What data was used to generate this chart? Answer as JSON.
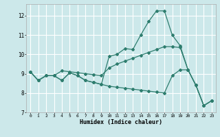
{
  "title": "",
  "xlabel": "Humidex (Indice chaleur)",
  "ylabel": "",
  "bg_color": "#cce8ea",
  "grid_color": "#ffffff",
  "line_color": "#2e7d6e",
  "xlim": [
    -0.5,
    23.5
  ],
  "ylim": [
    7,
    12.6
  ],
  "yticks": [
    7,
    8,
    9,
    10,
    11,
    12
  ],
  "xticks": [
    0,
    1,
    2,
    3,
    4,
    5,
    6,
    7,
    8,
    9,
    10,
    11,
    12,
    13,
    14,
    15,
    16,
    17,
    18,
    19,
    20,
    21,
    22,
    23
  ],
  "series": [
    {
      "x": [
        0,
        1,
        2,
        3,
        4,
        5,
        6,
        7,
        8,
        9,
        10,
        11,
        12,
        13,
        14,
        15,
        16,
        17,
        18,
        19,
        20,
        21,
        22,
        23
      ],
      "y": [
        9.1,
        8.65,
        8.9,
        8.9,
        8.65,
        9.05,
        8.9,
        8.65,
        8.55,
        8.45,
        9.9,
        10.0,
        10.3,
        10.25,
        11.0,
        11.7,
        12.25,
        12.25,
        11.0,
        10.45,
        9.2,
        8.4,
        7.35,
        7.6
      ]
    },
    {
      "x": [
        0,
        1,
        2,
        3,
        4,
        5,
        6,
        7,
        8,
        9,
        10,
        11,
        12,
        13,
        14,
        15,
        16,
        17,
        18,
        19,
        20,
        21,
        22,
        23
      ],
      "y": [
        9.1,
        8.65,
        8.9,
        8.9,
        8.65,
        9.05,
        8.9,
        8.65,
        8.55,
        8.45,
        8.35,
        8.3,
        8.25,
        8.2,
        8.15,
        8.1,
        8.05,
        8.0,
        8.9,
        9.2,
        9.2,
        8.4,
        7.35,
        7.6
      ]
    },
    {
      "x": [
        0,
        1,
        2,
        3,
        4,
        5,
        6,
        7,
        8,
        9,
        10,
        11,
        12,
        13,
        14,
        15,
        16,
        17,
        18,
        19,
        20,
        21,
        22,
        23
      ],
      "y": [
        9.1,
        8.65,
        8.9,
        8.9,
        9.15,
        9.1,
        9.05,
        9.0,
        8.95,
        8.9,
        9.3,
        9.5,
        9.65,
        9.8,
        9.95,
        10.1,
        10.25,
        10.4,
        10.4,
        10.35,
        9.2,
        8.4,
        7.35,
        7.6
      ]
    }
  ]
}
